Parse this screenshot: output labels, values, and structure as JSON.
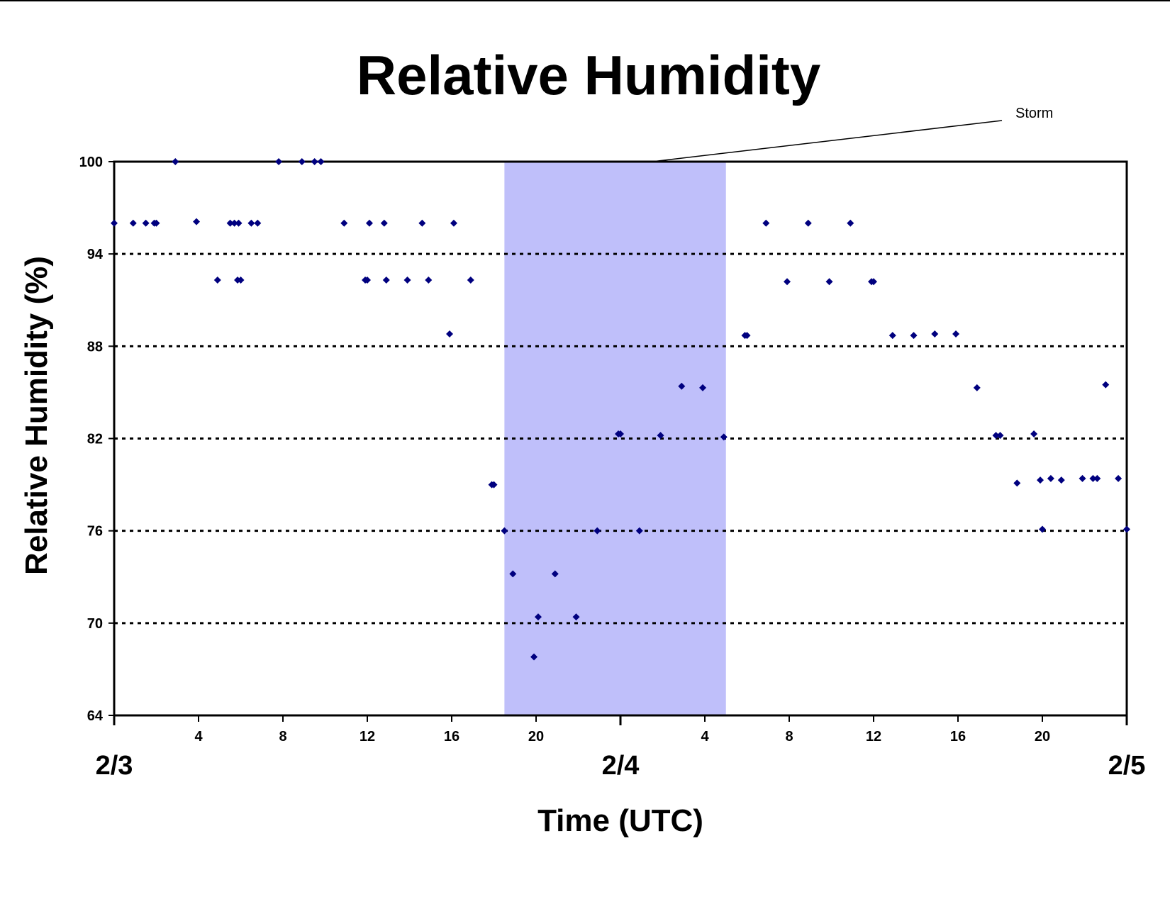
{
  "chart_data": {
    "type": "scatter",
    "title": "Relative Humidity",
    "xlabel": "Time (UTC)",
    "ylabel": "Relative Humidity (%)",
    "x_unit": "hours UTC",
    "xlim": [
      0,
      48
    ],
    "ylim": [
      64,
      100
    ],
    "yticks": [
      64,
      70,
      76,
      82,
      88,
      94,
      100
    ],
    "x_major_ticks": [
      0,
      24,
      48
    ],
    "x_minor_ticks": [
      4,
      8,
      12,
      16,
      20,
      28,
      32,
      36,
      40,
      44
    ],
    "x_minor_tick_labels": [
      "4",
      "8",
      "12",
      "16",
      "20",
      "4",
      "8",
      "12",
      "16",
      "20"
    ],
    "date_labels": [
      {
        "hour": 0,
        "label": "2/3"
      },
      {
        "hour": 24,
        "label": "2/4"
      },
      {
        "hour": 48,
        "label": "2/5"
      }
    ],
    "grid": "horizontal dotted",
    "shaded_region": {
      "x_start": 18.5,
      "x_end": 29.0,
      "color": "#bfbffa"
    },
    "annotations": [
      {
        "text": "Storm",
        "points_to_hour": 25.5,
        "points_to_value": 100
      }
    ],
    "marker_color": "#00007f",
    "series": [
      {
        "points": [
          [
            0,
            96
          ],
          [
            0.9,
            96
          ],
          [
            1.5,
            96
          ],
          [
            1.9,
            96
          ],
          [
            2.0,
            96
          ],
          [
            2.9,
            100
          ],
          [
            3.9,
            96.1
          ],
          [
            4.9,
            92.3
          ],
          [
            5.5,
            96
          ],
          [
            5.7,
            96
          ],
          [
            5.9,
            96
          ],
          [
            5.85,
            92.3
          ],
          [
            6.0,
            92.3
          ],
          [
            6.5,
            96
          ],
          [
            6.8,
            96
          ],
          [
            7.8,
            100
          ],
          [
            8.9,
            100
          ],
          [
            9.5,
            100
          ],
          [
            9.8,
            100
          ],
          [
            10.9,
            96
          ],
          [
            11.9,
            92.3
          ],
          [
            12.0,
            92.3
          ],
          [
            12.1,
            96
          ],
          [
            12.8,
            96
          ],
          [
            12.9,
            92.3
          ],
          [
            13.9,
            92.3
          ],
          [
            14.6,
            96
          ],
          [
            14.9,
            92.3
          ],
          [
            15.9,
            88.8
          ],
          [
            16.1,
            96
          ],
          [
            16.9,
            92.3
          ],
          [
            17.9,
            79
          ],
          [
            18.0,
            79
          ],
          [
            18.5,
            76
          ],
          [
            18.9,
            73.2
          ],
          [
            19.9,
            67.8
          ],
          [
            20.1,
            70.4
          ],
          [
            20.9,
            73.2
          ],
          [
            21.9,
            70.4
          ],
          [
            22.9,
            76
          ],
          [
            23.9,
            82.3
          ],
          [
            24.0,
            82.3
          ],
          [
            24.9,
            76
          ],
          [
            25.9,
            82.2
          ],
          [
            26.9,
            85.4
          ],
          [
            27.9,
            85.3
          ],
          [
            28.9,
            82.1
          ],
          [
            29.9,
            88.7
          ],
          [
            30.0,
            88.7
          ],
          [
            30.9,
            96
          ],
          [
            31.9,
            92.2
          ],
          [
            32.9,
            96
          ],
          [
            33.9,
            92.2
          ],
          [
            34.9,
            96
          ],
          [
            35.9,
            92.2
          ],
          [
            36.0,
            92.2
          ],
          [
            36.9,
            88.7
          ],
          [
            37.9,
            88.7
          ],
          [
            38.9,
            88.8
          ],
          [
            39.9,
            88.8
          ],
          [
            40.9,
            85.3
          ],
          [
            41.8,
            82.2
          ],
          [
            42.0,
            82.2
          ],
          [
            42.8,
            79.1
          ],
          [
            43.6,
            82.3
          ],
          [
            43.9,
            79.3
          ],
          [
            44.0,
            76.1
          ],
          [
            44.4,
            79.4
          ],
          [
            44.9,
            79.3
          ],
          [
            45.9,
            79.4
          ],
          [
            46.4,
            79.4
          ],
          [
            46.6,
            79.4
          ],
          [
            47.0,
            85.5
          ],
          [
            47.6,
            79.4
          ],
          [
            48.0,
            76.1
          ]
        ]
      }
    ]
  }
}
